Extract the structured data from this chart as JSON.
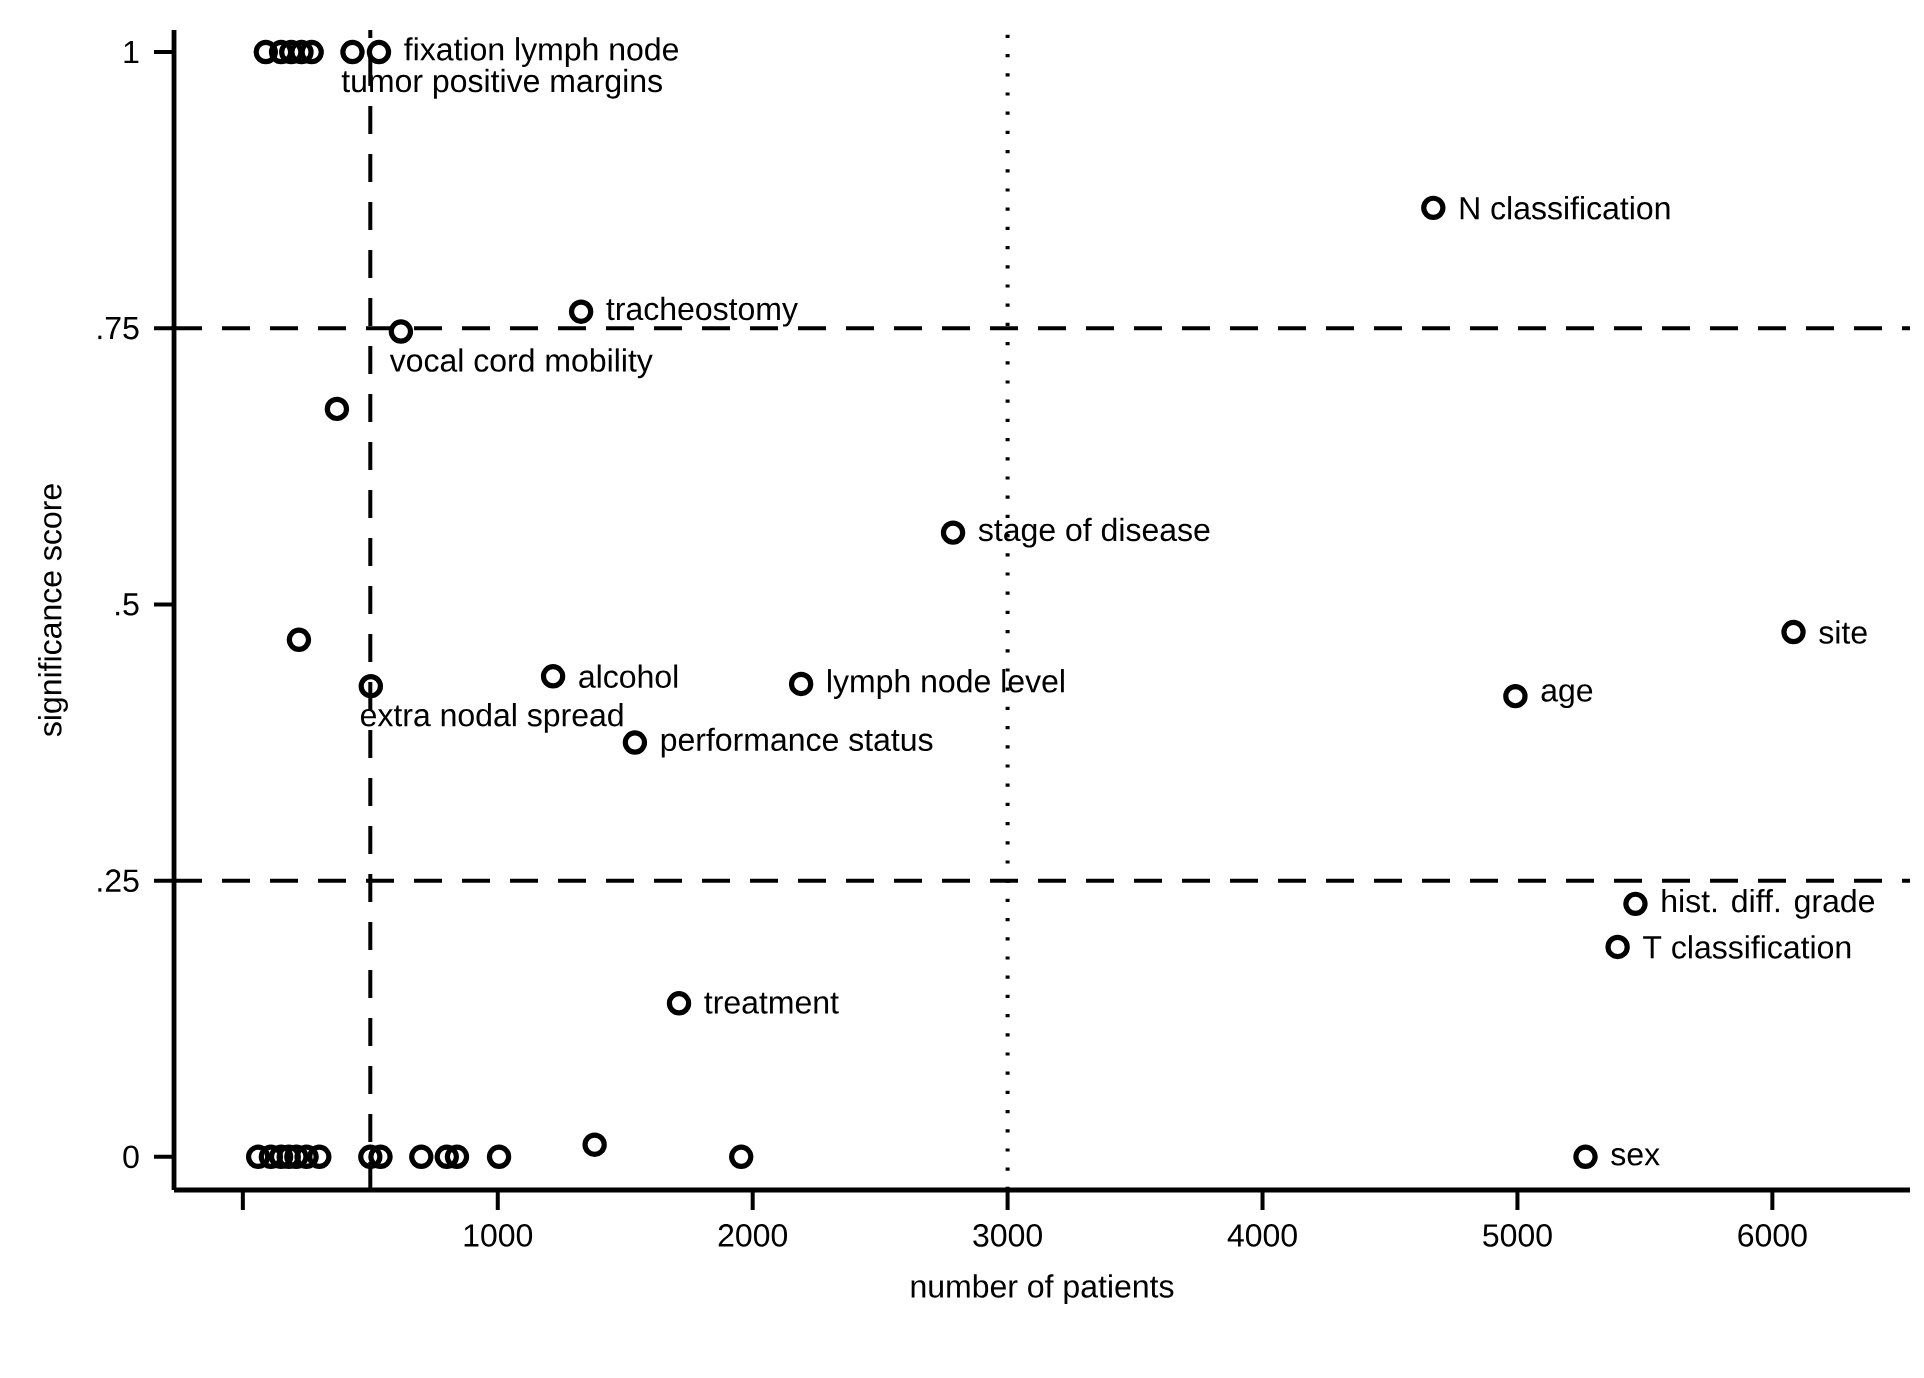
{
  "chart_data": {
    "type": "scatter",
    "xlabel": "number of patients",
    "ylabel": "significance score",
    "xlim": [
      -270,
      6540
    ],
    "ylim": [
      -0.03,
      1.02
    ],
    "xticks": [
      {
        "value": 0,
        "label": null
      },
      1000,
      2000,
      3000,
      4000,
      5000,
      6000
    ],
    "yticks": [
      {
        "value": 0,
        "label": "0"
      },
      {
        "value": 0.25,
        "label": ".25"
      },
      {
        "value": 0.5,
        "label": ".5"
      },
      {
        "value": 0.75,
        "label": ".75"
      },
      {
        "value": 1,
        "label": "1"
      }
    ],
    "marker": "circle",
    "series": [
      {
        "color": "#000000",
        "x": [
          90,
          150,
          190,
          230,
          270,
          430,
          534,
          1327,
          620,
          369,
          2786,
          4670,
          6083,
          220,
          502,
          1217,
          2190,
          1538,
          4992,
          5463,
          5393,
          1711,
          5267,
          60,
          110,
          150,
          180,
          210,
          250,
          300,
          500,
          540,
          700,
          800,
          840,
          1005,
          1380,
          1955
        ],
        "values": [
          1,
          1,
          1,
          1,
          1,
          1,
          1,
          0.765,
          0.747,
          0.677,
          0.565,
          0.859,
          0.475,
          0.468,
          0.426,
          0.435,
          0.428,
          0.375,
          0.417,
          0.229,
          0.19,
          0.139,
          0,
          0,
          0,
          0,
          0,
          0,
          0,
          0,
          0,
          0,
          0,
          0,
          0,
          0,
          0.011,
          0
        ]
      }
    ],
    "ref_lines": [
      {
        "axis": "y",
        "value": 0.75,
        "line_style": "dashed"
      },
      {
        "axis": "y",
        "value": 0.25,
        "line_style": "dashed"
      },
      {
        "axis": "x",
        "value": 500,
        "line_style": "dashed"
      },
      {
        "axis": "x",
        "value": 3000,
        "line_style": "dotted"
      }
    ],
    "annotations": [
      {
        "text": "fixation lymph node",
        "x": 534,
        "y": 1
      },
      {
        "text": "tumor positive margins",
        "x": 430,
        "y": 1
      },
      {
        "text": "tracheostomy",
        "x": 1327,
        "y": 0.765
      },
      {
        "text": "vocal cord mobility",
        "x": 620,
        "y": 0.747
      },
      {
        "text": "N classification",
        "x": 4670,
        "y": 0.859
      },
      {
        "text": "stage of disease",
        "x": 2786,
        "y": 0.565
      },
      {
        "text": "site",
        "x": 6083,
        "y": 0.475
      },
      {
        "text": "alcohol",
        "x": 1217,
        "y": 0.435
      },
      {
        "text": "extra nodal spread",
        "x": 502,
        "y": 0.426
      },
      {
        "text": "lymph node level",
        "x": 2190,
        "y": 0.428
      },
      {
        "text": "performance status",
        "x": 1538,
        "y": 0.375
      },
      {
        "text": "age",
        "x": 4992,
        "y": 0.417
      },
      {
        "text": "hist. diff. grade",
        "x": 5463,
        "y": 0.229
      },
      {
        "text": "T classification",
        "x": 5393,
        "y": 0.19
      },
      {
        "text": "treatment",
        "x": 1711,
        "y": 0.139
      },
      {
        "text": "sex",
        "x": 5267,
        "y": 0
      }
    ]
  }
}
